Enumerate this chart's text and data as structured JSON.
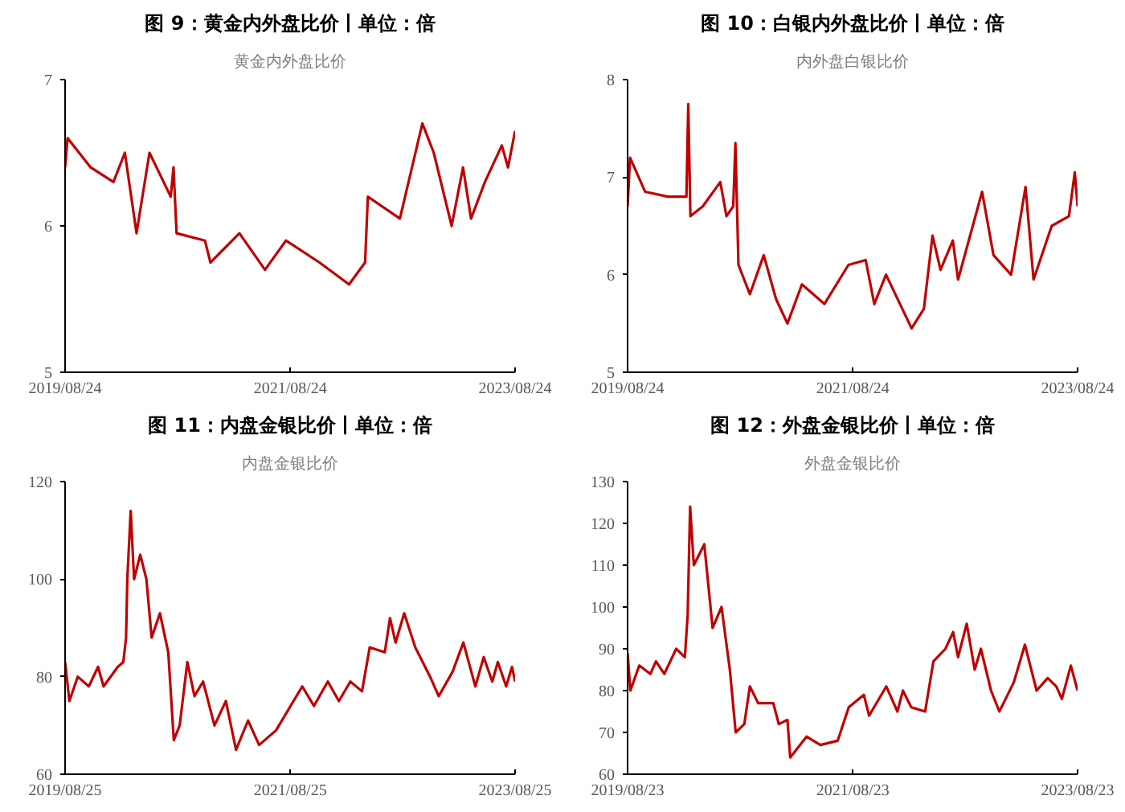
{
  "chart_data": [
    {
      "type": "line",
      "title": "图 9：黄金内外盘比价丨单位：倍",
      "subtitle": "黄金内外盘比价",
      "grid": false,
      "xlim": [
        "2019-08-24",
        "2023-08-24"
      ],
      "xticks": [
        {
          "value": "2019-08-24",
          "label": "2019/08/24"
        },
        {
          "value": "2021-08-24",
          "label": "2021/08/24"
        },
        {
          "value": "2023-08-24",
          "label": "2023/08/24"
        }
      ],
      "ylim": [
        5,
        7
      ],
      "yticks": [
        5,
        6,
        7
      ],
      "series": [
        {
          "color": "#c00000",
          "x": [
            "2019-08-24",
            "2019-09-01",
            "2019-11-15",
            "2020-01-28",
            "2020-03-05",
            "2020-04-12",
            "2020-05-24",
            "2020-08-01",
            "2020-08-10",
            "2020-08-20",
            "2020-11-20",
            "2020-12-08",
            "2021-03-12",
            "2021-06-03",
            "2021-08-10",
            "2021-11-27",
            "2022-03-03",
            "2022-04-24",
            "2022-05-03",
            "2022-08-15",
            "2022-10-27",
            "2022-12-03",
            "2023-01-30",
            "2023-03-08",
            "2023-04-03",
            "2023-05-18",
            "2023-07-12",
            "2023-08-01",
            "2023-08-24"
          ],
          "values": [
            6.4,
            6.6,
            6.4,
            6.3,
            6.5,
            5.95,
            6.5,
            6.2,
            6.4,
            5.95,
            5.9,
            5.75,
            5.95,
            5.7,
            5.9,
            5.75,
            5.6,
            5.75,
            6.2,
            6.05,
            6.7,
            6.5,
            6.0,
            6.4,
            6.05,
            6.3,
            6.55,
            6.4,
            6.65
          ]
        }
      ]
    },
    {
      "type": "line",
      "title": "图 10：白银内外盘比价丨单位：倍",
      "subtitle": "内外盘白银比价",
      "grid": false,
      "xlim": [
        "2019-08-24",
        "2023-08-24"
      ],
      "xticks": [
        {
          "value": "2019-08-24",
          "label": "2019/08/24"
        },
        {
          "value": "2021-08-24",
          "label": "2021/08/24"
        },
        {
          "value": "2023-08-24",
          "label": "2023/08/24"
        }
      ],
      "ylim": [
        5,
        8
      ],
      "yticks": [
        5,
        6,
        7,
        8
      ],
      "series": [
        {
          "color": "#c00000",
          "x": [
            "2019-08-24",
            "2019-09-01",
            "2019-10-20",
            "2020-01-02",
            "2020-03-02",
            "2020-03-08",
            "2020-03-15",
            "2020-04-24",
            "2020-06-20",
            "2020-07-10",
            "2020-08-01",
            "2020-08-08",
            "2020-08-18",
            "2020-09-24",
            "2020-11-08",
            "2020-12-18",
            "2021-01-24",
            "2021-03-12",
            "2021-05-24",
            "2021-08-10",
            "2021-10-05",
            "2021-11-02",
            "2021-12-10",
            "2022-03-03",
            "2022-04-12",
            "2022-05-10",
            "2022-06-05",
            "2022-07-15",
            "2022-08-01",
            "2022-10-18",
            "2022-11-24",
            "2023-01-20",
            "2023-03-08",
            "2023-04-03",
            "2023-06-01",
            "2023-07-27",
            "2023-08-15",
            "2023-08-24"
          ],
          "values": [
            6.7,
            7.2,
            6.85,
            6.8,
            6.8,
            7.75,
            6.6,
            6.7,
            6.95,
            6.6,
            6.7,
            7.35,
            6.1,
            5.8,
            6.2,
            5.75,
            5.5,
            5.9,
            5.7,
            6.1,
            6.15,
            5.7,
            6.0,
            5.45,
            5.65,
            6.4,
            6.05,
            6.35,
            5.95,
            6.85,
            6.2,
            6.0,
            6.9,
            5.95,
            6.5,
            6.6,
            7.05,
            6.7
          ]
        }
      ]
    },
    {
      "type": "line",
      "title": "图 11：内盘金银比价丨单位：倍",
      "subtitle": "内盘金银比价",
      "grid": false,
      "xlim": [
        "2019-08-25",
        "2023-08-25"
      ],
      "xticks": [
        {
          "value": "2019-08-25",
          "label": "2019/08/25"
        },
        {
          "value": "2021-08-25",
          "label": "2021/08/25"
        },
        {
          "value": "2023-08-25",
          "label": "2023/08/25"
        }
      ],
      "ylim": [
        60,
        120
      ],
      "yticks": [
        60,
        80,
        100,
        120
      ],
      "series": [
        {
          "color": "#c00000",
          "x": [
            "2019-08-25",
            "2019-09-08",
            "2019-10-05",
            "2019-11-10",
            "2019-12-10",
            "2019-12-28",
            "2020-02-12",
            "2020-03-01",
            "2020-03-10",
            "2020-03-14",
            "2020-03-25",
            "2020-04-05",
            "2020-04-25",
            "2020-05-15",
            "2020-06-01",
            "2020-06-28",
            "2020-07-25",
            "2020-08-12",
            "2020-08-31",
            "2020-09-25",
            "2020-10-18",
            "2020-11-15",
            "2020-12-22",
            "2021-01-28",
            "2021-03-02",
            "2021-04-10",
            "2021-05-16",
            "2021-07-10",
            "2021-10-03",
            "2021-11-10",
            "2021-12-25",
            "2022-01-30",
            "2022-03-08",
            "2022-04-15",
            "2022-05-10",
            "2022-06-28",
            "2022-07-15",
            "2022-08-02",
            "2022-08-30",
            "2022-10-05",
            "2022-11-22",
            "2022-12-20",
            "2023-02-03",
            "2023-03-10",
            "2023-04-18",
            "2023-05-15",
            "2023-06-12",
            "2023-06-30",
            "2023-07-27",
            "2023-08-15",
            "2023-08-25"
          ],
          "values": [
            83,
            75,
            80,
            78,
            82,
            78,
            82,
            83,
            88,
            100,
            114,
            100,
            105,
            100,
            88,
            93,
            85,
            67,
            70,
            83,
            76,
            79,
            70,
            75,
            65,
            71,
            66,
            69,
            78,
            74,
            79,
            75,
            79,
            77,
            86,
            85,
            92,
            87,
            93,
            86,
            80,
            76,
            81,
            87,
            78,
            84,
            79,
            83,
            78,
            82,
            79
          ]
        }
      ]
    },
    {
      "type": "line",
      "title": "图 12：外盘金银比价丨单位：倍",
      "subtitle": "外盘金银比价",
      "grid": false,
      "xlim": [
        "2019-08-23",
        "2023-08-23"
      ],
      "xticks": [
        {
          "value": "2019-08-23",
          "label": "2019/08/23"
        },
        {
          "value": "2021-08-23",
          "label": "2021/08/23"
        },
        {
          "value": "2023-08-23",
          "label": "2023/08/23"
        }
      ],
      "ylim": [
        60,
        130
      ],
      "yticks": [
        60,
        70,
        80,
        90,
        100,
        110,
        120,
        130
      ],
      "series": [
        {
          "color": "#c00000",
          "x": [
            "2019-08-23",
            "2019-09-01",
            "2019-09-30",
            "2019-11-05",
            "2019-11-23",
            "2019-12-20",
            "2020-01-28",
            "2020-02-25",
            "2020-03-05",
            "2020-03-13",
            "2020-03-25",
            "2020-04-28",
            "2020-05-25",
            "2020-06-23",
            "2020-07-20",
            "2020-08-08",
            "2020-09-05",
            "2020-09-23",
            "2020-10-20",
            "2020-12-08",
            "2020-12-26",
            "2021-01-23",
            "2021-02-01",
            "2021-03-26",
            "2021-05-10",
            "2021-07-05",
            "2021-08-10",
            "2021-09-28",
            "2021-10-15",
            "2021-12-10",
            "2022-01-15",
            "2022-02-02",
            "2022-03-01",
            "2022-04-15",
            "2022-05-12",
            "2022-06-20",
            "2022-07-15",
            "2022-07-31",
            "2022-08-28",
            "2022-09-23",
            "2022-10-13",
            "2022-11-15",
            "2022-12-12",
            "2023-01-28",
            "2023-03-05",
            "2023-04-12",
            "2023-05-18",
            "2023-06-15",
            "2023-07-03",
            "2023-08-01",
            "2023-08-23"
          ],
          "values": [
            89,
            80,
            86,
            84,
            87,
            84,
            90,
            88,
            98,
            124,
            110,
            115,
            95,
            100,
            85,
            70,
            72,
            81,
            77,
            77,
            72,
            73,
            64,
            69,
            67,
            68,
            76,
            79,
            74,
            81,
            75,
            80,
            76,
            75,
            87,
            90,
            94,
            88,
            96,
            85,
            90,
            80,
            75,
            82,
            91,
            80,
            83,
            81,
            78,
            86,
            80
          ]
        }
      ]
    }
  ]
}
